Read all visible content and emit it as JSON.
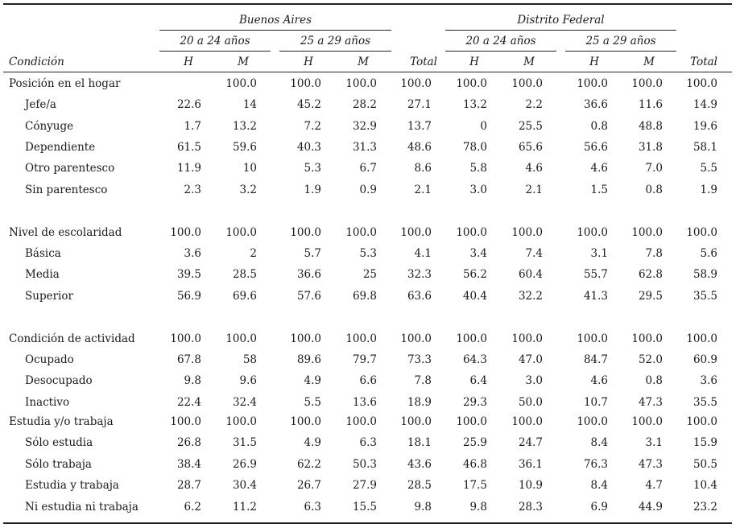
{
  "header": {
    "group_ba": "Buenos Aires",
    "group_df": "Distrito Federal",
    "age_1": "20 a 24 años",
    "age_2": "25 a 29 años",
    "condicion": "Condición",
    "h": "H",
    "m": "M",
    "total": "Total"
  },
  "rows": [
    {
      "label": "Posición en el hogar",
      "indent": false,
      "values": [
        "",
        "100.0",
        "100.0",
        "100.0",
        "100.0",
        "100.0",
        "100.0",
        "100.0",
        "100.0",
        "100.0"
      ]
    },
    {
      "label": "Jefe/a",
      "indent": true,
      "values": [
        "22.6",
        "14",
        "45.2",
        "28.2",
        "27.1",
        "13.2",
        "2.2",
        "36.6",
        "11.6",
        "14.9"
      ]
    },
    {
      "label": "Cónyuge",
      "indent": true,
      "values": [
        "1.7",
        "13.2",
        "7.2",
        "32.9",
        "13.7",
        "0",
        "25.5",
        "0.8",
        "48.8",
        "19.6"
      ]
    },
    {
      "label": "Dependiente",
      "indent": true,
      "values": [
        "61.5",
        "59.6",
        "40.3",
        "31.3",
        "48.6",
        "78.0",
        "65.6",
        "56.6",
        "31.8",
        "58.1"
      ]
    },
    {
      "label": "Otro parentesco",
      "indent": true,
      "values": [
        "11.9",
        "10",
        "5.3",
        "6.7",
        "8.6",
        "5.8",
        "4.6",
        "4.6",
        "7.0",
        "5.5"
      ]
    },
    {
      "label": "Sin parentesco",
      "indent": true,
      "values": [
        "2.3",
        "3.2",
        "1.9",
        "0.9",
        "2.1",
        "3.0",
        "2.1",
        "1.5",
        "0.8",
        "1.9"
      ]
    },
    {
      "label": "Nivel de escolaridad",
      "indent": false,
      "values": [
        "100.0",
        "100.0",
        "100.0",
        "100.0",
        "100.0",
        "100.0",
        "100.0",
        "100.0",
        "100.0",
        "100.0"
      ]
    },
    {
      "label": "Básica",
      "indent": true,
      "values": [
        "3.6",
        "2",
        "5.7",
        "5.3",
        "4.1",
        "3.4",
        "7.4",
        "3.1",
        "7.8",
        "5.6"
      ]
    },
    {
      "label": "Media",
      "indent": true,
      "values": [
        "39.5",
        "28.5",
        "36.6",
        "25",
        "32.3",
        "56.2",
        "60.4",
        "55.7",
        "62.8",
        "58.9"
      ]
    },
    {
      "label": "Superior",
      "indent": true,
      "values": [
        "56.9",
        "69.6",
        "57.6",
        "69.8",
        "63.6",
        "40.4",
        "32.2",
        "41.3",
        "29.5",
        "35.5"
      ]
    },
    {
      "label": "Condición de actividad",
      "indent": false,
      "values": [
        "100.0",
        "100.0",
        "100.0",
        "100.0",
        "100.0",
        "100.0",
        "100.0",
        "100.0",
        "100.0",
        "100.0"
      ]
    },
    {
      "label": "Ocupado",
      "indent": true,
      "values": [
        "67.8",
        "58",
        "89.6",
        "79.7",
        "73.3",
        "64.3",
        "47.0",
        "84.7",
        "52.0",
        "60.9"
      ]
    },
    {
      "label": "Desocupado",
      "indent": true,
      "values": [
        "9.8",
        "9.6",
        "4.9",
        "6.6",
        "7.8",
        "6.4",
        "3.0",
        "4.6",
        "0.8",
        "3.6"
      ]
    },
    {
      "label": "Inactivo",
      "indent": true,
      "values": [
        "22.4",
        "32.4",
        "5.5",
        "13.6",
        "18.9",
        "29.3",
        "50.0",
        "10.7",
        "47.3",
        "35.5"
      ]
    },
    {
      "label": "Estudia y/o trabaja",
      "indent": false,
      "values": [
        "100.0",
        "100.0",
        "100.0",
        "100.0",
        "100.0",
        "100.0",
        "100.0",
        "100.0",
        "100.0",
        "100.0"
      ]
    },
    {
      "label": "Sólo estudia",
      "indent": true,
      "values": [
        "26.8",
        "31.5",
        "4.9",
        "6.3",
        "18.1",
        "25.9",
        "24.7",
        "8.4",
        "3.1",
        "15.9"
      ]
    },
    {
      "label": "Sólo trabaja",
      "indent": true,
      "values": [
        "38.4",
        "26.9",
        "62.2",
        "50.3",
        "43.6",
        "46.8",
        "36.1",
        "76.3",
        "47.3",
        "50.5"
      ]
    },
    {
      "label": "Estudia y trabaja",
      "indent": true,
      "values": [
        "28.7",
        "30.4",
        "26.7",
        "27.9",
        "28.5",
        "17.5",
        "10.9",
        "8.4",
        "4.7",
        "10.4"
      ]
    },
    {
      "label": "Ni estudia ni trabaja",
      "indent": true,
      "values": [
        "6.2",
        "11.2",
        "6.3",
        "15.5",
        "9.8",
        "9.8",
        "28.3",
        "6.9",
        "44.9",
        "23.2"
      ]
    }
  ]
}
